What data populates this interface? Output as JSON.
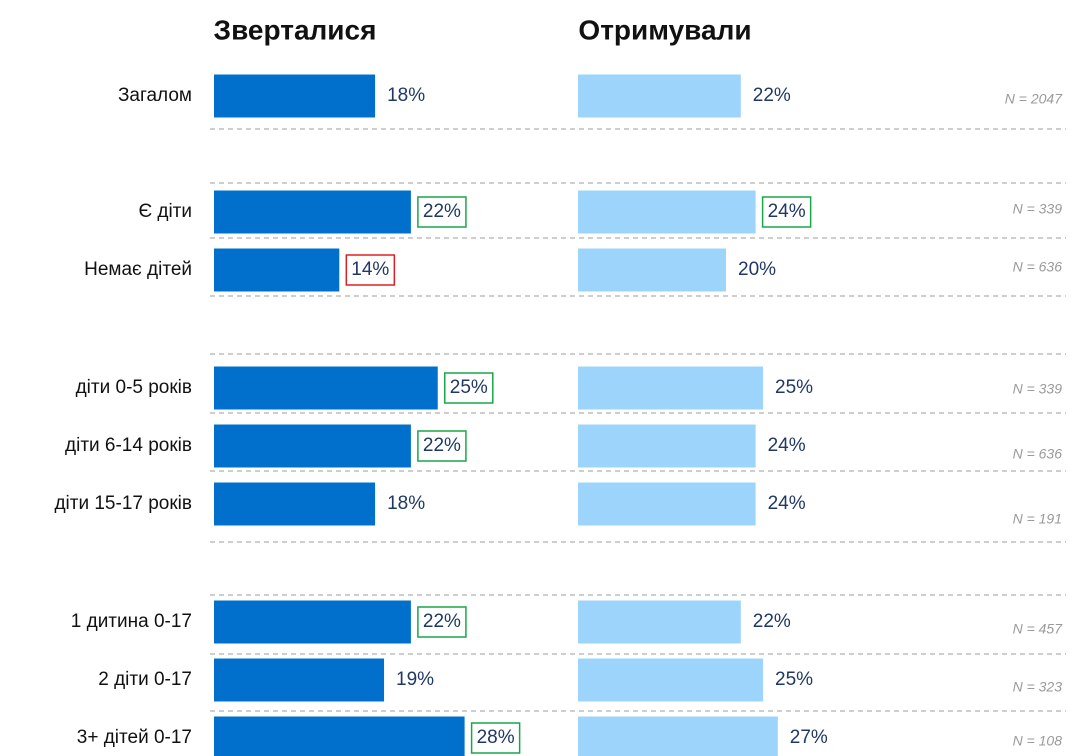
{
  "chart_data": {
    "type": "bar",
    "orientation": "horizontal",
    "categories": [
      "Загалом",
      "Є діти",
      "Немає дітей",
      "діти 0-5 років",
      "діти 6-14 років",
      "діти 15-17 років",
      "1 дитина 0-17",
      "2 діти 0-17",
      "3+ дітей 0-17"
    ],
    "series": [
      {
        "name": "Зверталися",
        "color": "#0070cc",
        "values": [
          18,
          22,
          14,
          25,
          22,
          18,
          22,
          19,
          28
        ],
        "value_labels": [
          "18%",
          "22%",
          "14%",
          "25%",
          "22%",
          "18%",
          "22%",
          "19%",
          "28%"
        ],
        "highlights": [
          null,
          "#1aa64a",
          "#e02020",
          "#1aa64a",
          "#1aa64a",
          null,
          "#1aa64a",
          null,
          "#1aa64a"
        ]
      },
      {
        "name": "Отримували",
        "color": "#9dd4fb",
        "values": [
          22,
          24,
          20,
          25,
          24,
          24,
          22,
          25,
          27
        ],
        "value_labels": [
          "22%",
          "24%",
          "20%",
          "25%",
          "24%",
          "24%",
          "22%",
          "25%",
          "27%"
        ],
        "highlights": [
          null,
          "#1aa64a",
          null,
          null,
          null,
          null,
          null,
          null,
          null
        ]
      }
    ],
    "annotations": [
      "N = 2047",
      "N = 339",
      "N = 636",
      "N = 339",
      "N = 636",
      "N = 191",
      "N = 457",
      "N = 323",
      "N = 108"
    ]
  }
}
